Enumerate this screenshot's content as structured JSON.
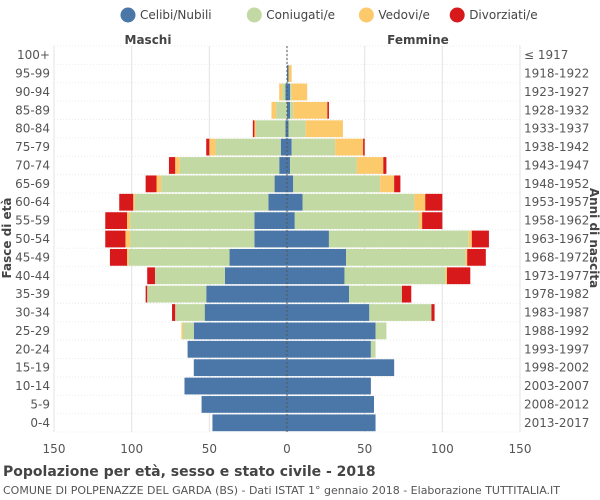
{
  "chart_data": {
    "type": "bar",
    "subtype": "population-pyramid",
    "title": "Popolazione per età, sesso e stato civile - 2018",
    "subtitle": "COMUNE DI POLPENAZZE DEL GARDA (BS) - Dati ISTAT 1° gennaio 2018 - Elaborazione TUTTITALIA.IT",
    "left_label": "Maschi",
    "right_label": "Femmine",
    "ylabel_left": "Fasce di età",
    "ylabel_right": "Anni di nascita",
    "xlim": [
      -150,
      150
    ],
    "x_ticks": [
      -150,
      -100,
      -50,
      0,
      50,
      100,
      150
    ],
    "x_tick_labels": [
      "150",
      "100",
      "50",
      "0",
      "50",
      "100",
      "150"
    ],
    "legend": [
      {
        "name": "Celibi/Nubili",
        "color": "#4a77a8"
      },
      {
        "name": "Coniugati/e",
        "color": "#c2d9a3"
      },
      {
        "name": "Vedovi/e",
        "color": "#fcc96b"
      },
      {
        "name": "Divorziati/e",
        "color": "#d7191c"
      }
    ],
    "age_groups": [
      "100+",
      "95-99",
      "90-94",
      "85-89",
      "80-84",
      "75-79",
      "70-74",
      "65-69",
      "60-64",
      "55-59",
      "50-54",
      "45-49",
      "40-44",
      "35-39",
      "30-34",
      "25-29",
      "20-24",
      "15-19",
      "10-14",
      "5-9",
      "0-4"
    ],
    "birth_years": [
      "≤ 1917",
      "1918-1922",
      "1923-1927",
      "1928-1932",
      "1933-1937",
      "1938-1942",
      "1943-1947",
      "1948-1952",
      "1953-1957",
      "1958-1962",
      "1963-1967",
      "1968-1972",
      "1973-1977",
      "1978-1982",
      "1983-1987",
      "1988-1992",
      "1993-1997",
      "1998-2002",
      "2003-2007",
      "2008-2012",
      "2013-2017"
    ],
    "males": {
      "Celibi/Nubili": [
        0,
        0,
        1,
        0,
        1,
        4,
        5,
        8,
        12,
        21,
        21,
        37,
        40,
        52,
        53,
        60,
        64,
        60,
        66,
        55,
        48
      ],
      "Coniugati/e": [
        0,
        0,
        2,
        7,
        19,
        42,
        64,
        73,
        86,
        80,
        80,
        65,
        45,
        38,
        19,
        7,
        0,
        0,
        0,
        0,
        0
      ],
      "Vedovi/e": [
        0,
        0,
        2,
        3,
        1,
        4,
        3,
        3,
        1,
        2,
        3,
        1,
        0,
        0,
        0,
        1,
        0,
        0,
        0,
        0,
        0
      ],
      "Divorziati/e": [
        0,
        0,
        0,
        0,
        1,
        2,
        4,
        7,
        9,
        14,
        13,
        11,
        5,
        1,
        2,
        0,
        0,
        0,
        0,
        0,
        0
      ]
    },
    "females": {
      "Celibi/Nubili": [
        0,
        1,
        2,
        2,
        1,
        3,
        2,
        4,
        10,
        5,
        27,
        38,
        37,
        40,
        53,
        57,
        54,
        69,
        54,
        56,
        57
      ],
      "Coniugati/e": [
        0,
        0,
        1,
        2,
        11,
        28,
        43,
        56,
        72,
        80,
        90,
        77,
        65,
        34,
        40,
        7,
        3,
        0,
        0,
        0,
        0
      ],
      "Vedovi/e": [
        0,
        2,
        10,
        22,
        24,
        18,
        17,
        9,
        7,
        2,
        2,
        1,
        1,
        0,
        0,
        0,
        0,
        0,
        0,
        0,
        0
      ],
      "Divorziati/e": [
        0,
        0,
        0,
        1,
        0,
        1,
        2,
        4,
        11,
        13,
        11,
        12,
        15,
        6,
        2,
        0,
        0,
        0,
        0,
        0,
        0
      ]
    }
  }
}
